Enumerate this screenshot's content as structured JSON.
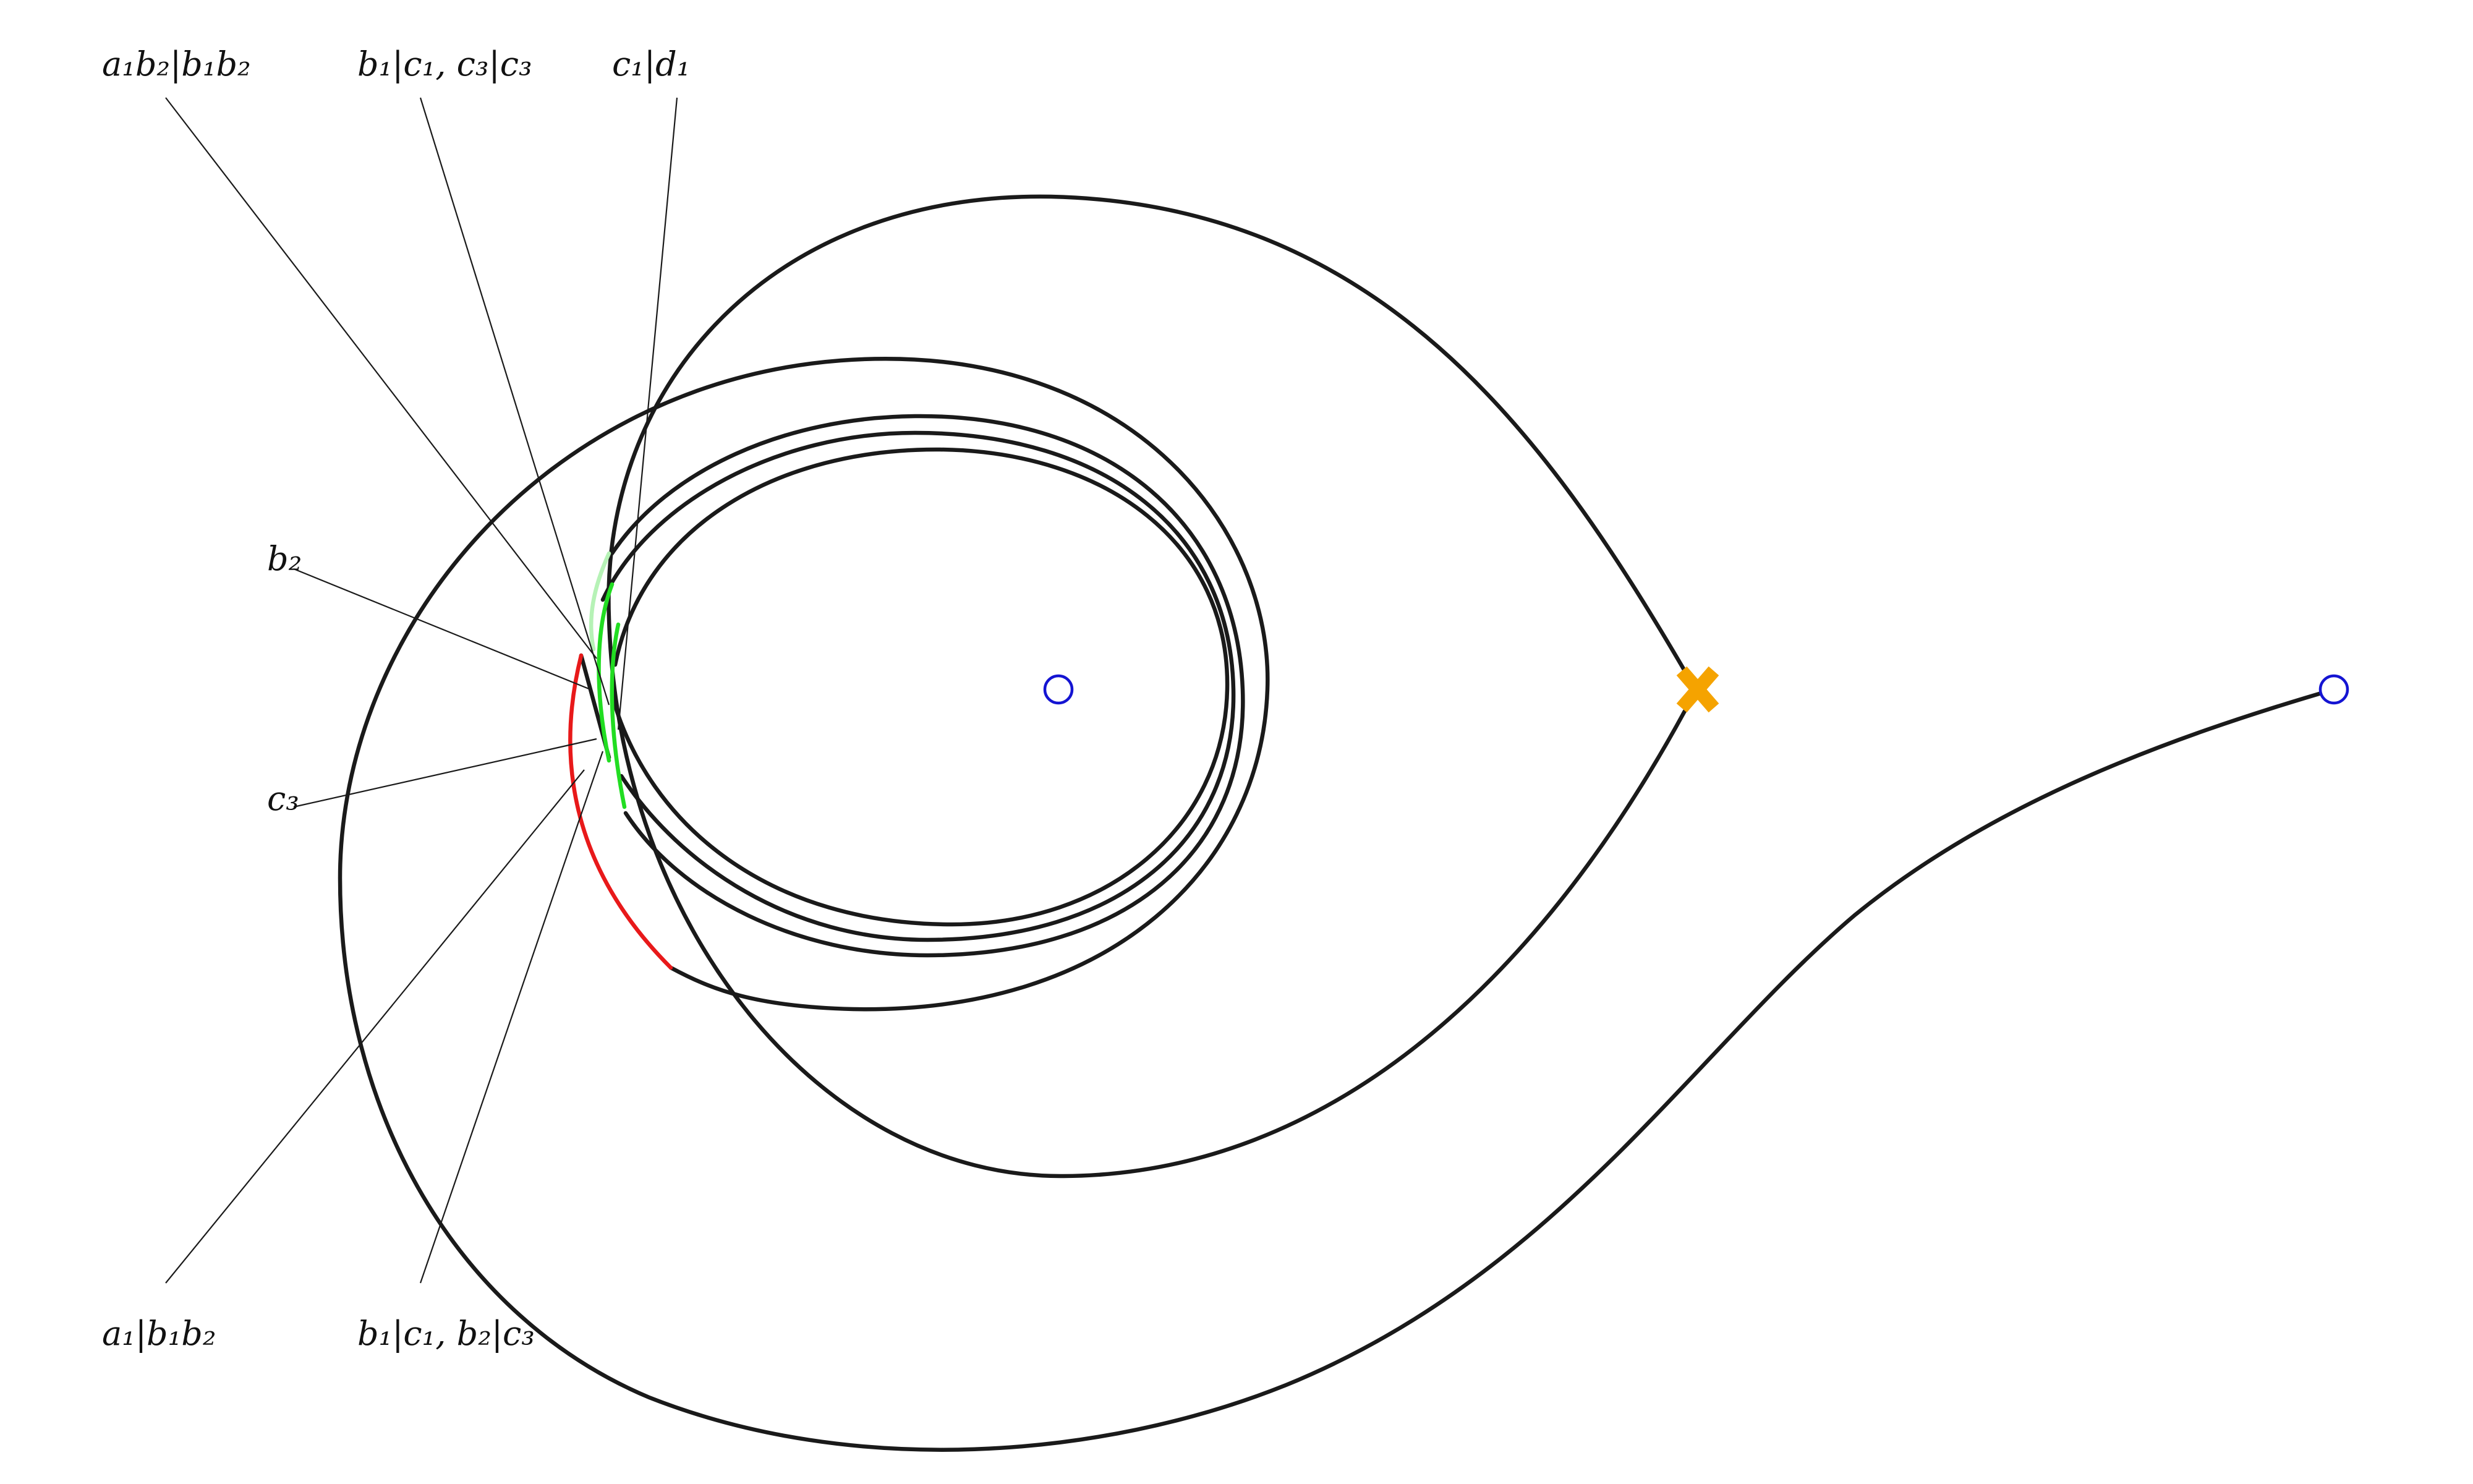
{
  "diagram": {
    "labels": {
      "top_1": "a₁b₂|b₁b₂",
      "top_2": "b₁|c₁, c₃|c₃",
      "top_3": "c₁|d₁",
      "left_1": "b₂",
      "left_2": "c₃",
      "bottom_1": "a₁|b₁b₂",
      "bottom_2": "b₁|c₁, b₂|c₃"
    },
    "colors": {
      "curve": "#1a1a1a",
      "red_arc": "#e8191a",
      "green_arc": "#22dd22",
      "green_arc_light": "#b6f2b6",
      "circle_marker": "#1414d2",
      "cross_marker": "#f5a300"
    },
    "markers": {
      "left_circle": "circle-marker",
      "right_circle": "circle-marker",
      "cross": "cross-marker"
    }
  }
}
